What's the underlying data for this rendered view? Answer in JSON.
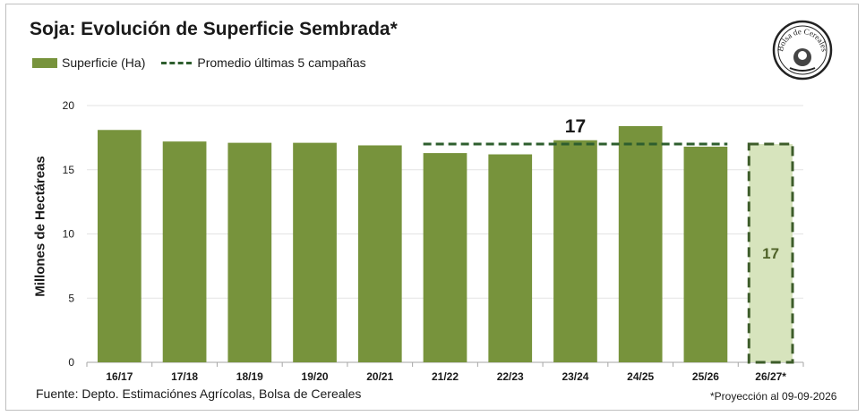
{
  "chart_data": {
    "type": "bar",
    "title": "Soja: Evolución de Superficie Sembrada*",
    "ylabel": "Millones de Hectáreas",
    "xlabel": "",
    "categories": [
      "16/17",
      "17/18",
      "18/19",
      "19/20",
      "20/21",
      "21/22",
      "22/23",
      "23/24",
      "24/25",
      "25/26",
      "26/27*"
    ],
    "series": [
      {
        "name": "Superficie (Ha)",
        "values": [
          18.1,
          17.2,
          17.1,
          17.1,
          16.9,
          16.3,
          16.2,
          17.3,
          18.4,
          16.8,
          17.0
        ]
      }
    ],
    "projection_index": 10,
    "projection_label": "17",
    "average": {
      "name": "Promedio últimas 5 campañas",
      "value": 17,
      "label": "17",
      "from": "21/22",
      "to": "25/26"
    },
    "ylim": [
      0,
      20
    ],
    "yticks": [
      0,
      5,
      10,
      15,
      20
    ],
    "grid": true,
    "legend": "top-left",
    "colors": {
      "bar": "#77933c",
      "projection_fill": "#d7e4bd",
      "projection_border": "#3d5c2a",
      "average_line": "#2e5e2e"
    }
  },
  "legend": {
    "bar_label": "Superficie (Ha)",
    "line_label": "Promedio últimas 5 campañas"
  },
  "logo": {
    "text": "Bolsa de Cereales",
    "icon": "bolsa-de-cereales-seal"
  },
  "source": "Fuente: Depto. Estimaciónes Agrícolas, Bolsa de Cereales",
  "footnote": "*Proyección al 09-09-2026"
}
